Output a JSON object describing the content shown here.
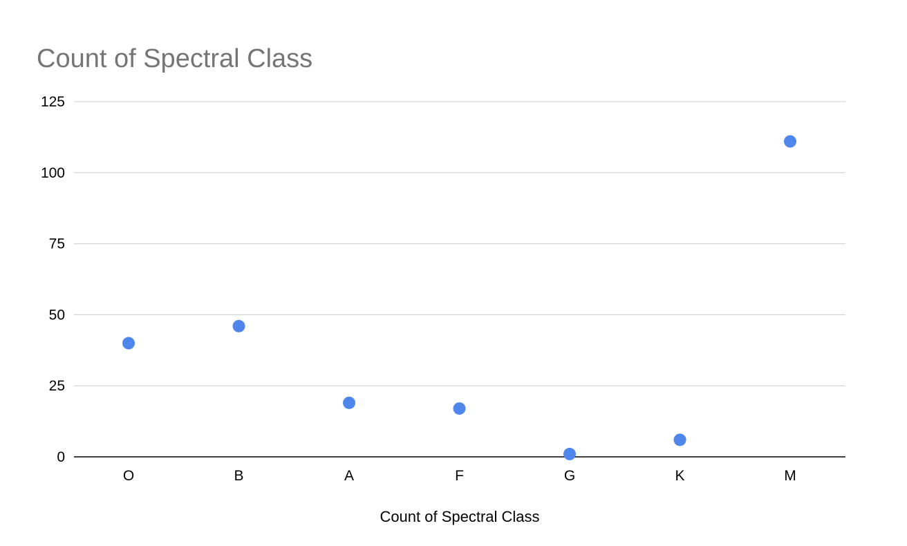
{
  "chart_data": {
    "type": "scatter",
    "title": "Count of Spectral Class",
    "xlabel": "Count of Spectral Class",
    "ylabel": "",
    "categories": [
      "O",
      "B",
      "A",
      "F",
      "G",
      "K",
      "M"
    ],
    "values": [
      40,
      46,
      19,
      17,
      1,
      6,
      111
    ],
    "ylim": [
      0,
      125
    ],
    "yticks": [
      "0",
      "25",
      "50",
      "75",
      "100",
      "125"
    ],
    "grid": true,
    "legend": "none",
    "colors": {
      "point": "#4f86ec",
      "grid": "#cccccc",
      "axis": "#000000",
      "title": "#757575",
      "label": "#000000"
    }
  }
}
